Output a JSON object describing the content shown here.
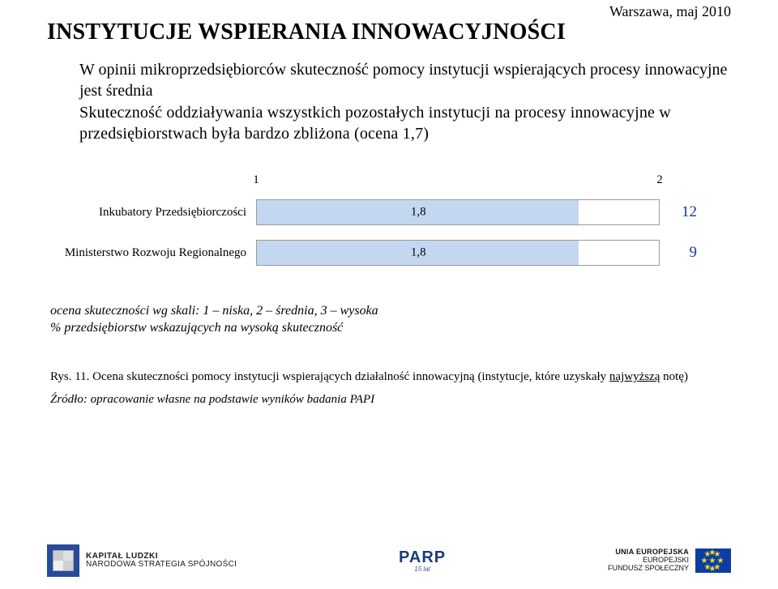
{
  "header": {
    "date": "Warszawa, maj 2010",
    "title": "INSTYTUCJE WSPIERANIA INNOWACYJNOŚCI"
  },
  "intro": {
    "p1": "W opinii mikroprzedsiębiorców skuteczność pomocy instytucji wspierających procesy innowacyjne jest średnia",
    "p2": "Skuteczność oddziaływania wszystkich pozostałych instytucji na procesy innowacyjne w przedsiębiorstwach była bardzo zbliżona (ocena 1,7)"
  },
  "chart": {
    "type": "bar",
    "x_axis_min": 1,
    "x_axis_max": 2,
    "axis_ticks": [
      "1",
      "2"
    ],
    "bar_fill_color": "#c3d8f0",
    "bar_border_color": "#9a9a9a",
    "value_font_color": "#000000",
    "extra_font_color": "#163a90",
    "label_fontsize": 15,
    "extra_fontsize": 19,
    "bars": [
      {
        "label": "Inkubatory Przedsiębiorczości",
        "value": 1.8,
        "value_text": "1,8",
        "extra": "12"
      },
      {
        "label": "Ministerstwo Rozwoju Regionalnego",
        "value": 1.8,
        "value_text": "1,8",
        "extra": "9"
      }
    ]
  },
  "legend": {
    "l1": "ocena skuteczności wg skali: 1 – niska, 2 – średnia, 3 – wysoka",
    "l2": "% przedsiębiorstw wskazujących na wysoką skuteczność"
  },
  "caption": {
    "prefix": "Rys. 11. Ocena skuteczności pomocy instytucji wspierających działalność innowacyjną (instytucje, które uzyskały ",
    "underlined": "najwyższą",
    "suffix": " notę)"
  },
  "source": "Źródło: opracowanie własne na podstawie wyników badania PAPI",
  "footer": {
    "kl_line1": "KAPITAŁ LUDZKI",
    "kl_line2": "NARODOWA STRATEGIA SPÓJNOŚCI",
    "parp": "PARP",
    "parp_sub": "15 lat",
    "eu_line1": "UNIA EUROPEJSKA",
    "eu_line2": "EUROPEJSKI",
    "eu_line3": "FUNDUSZ SPOŁECZNY"
  }
}
